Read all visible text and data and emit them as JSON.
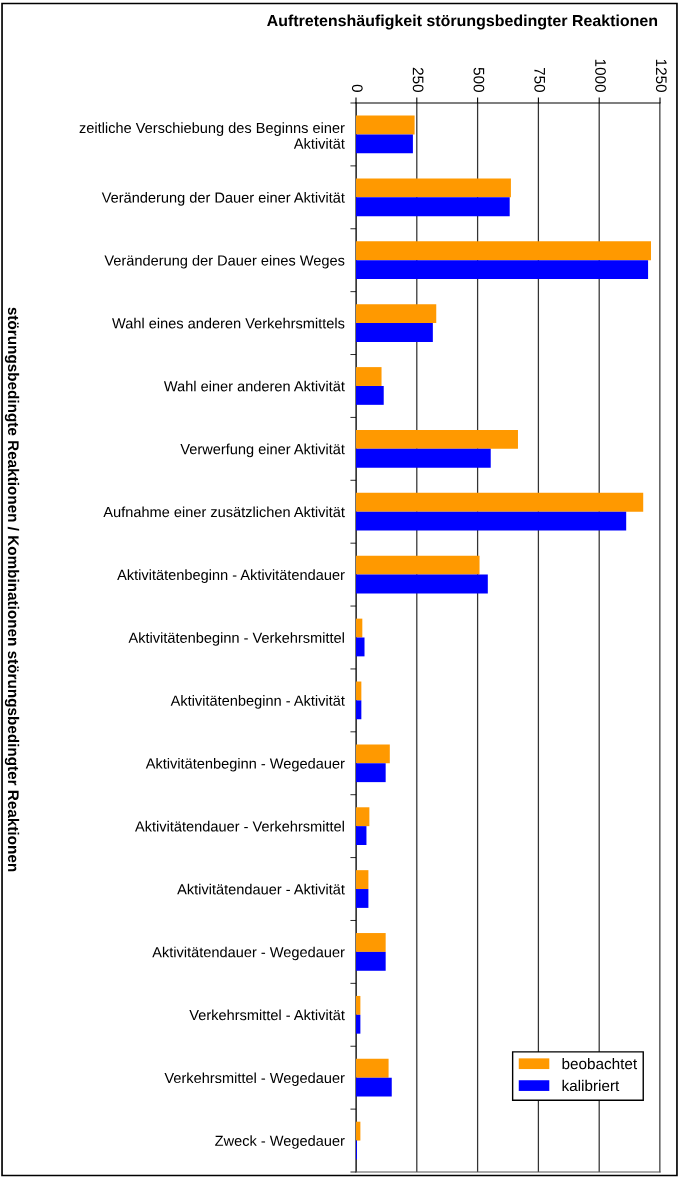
{
  "chart_data": {
    "type": "bar",
    "orientation": "horizontal",
    "title": "Auftretenshäufigkeit störungsbedingter Reaktionen",
    "ylabel": "störungsbedingte Reaktionen / Kombinationen störungsbedingter Reaktionen",
    "categories": [
      "zeitliche Verschiebung des Beginns einer\nAktivität",
      "Veränderung der Dauer einer Aktivität",
      "Veränderung der Dauer eines Weges",
      "Wahl eines anderen Verkehrsmittels",
      "Wahl einer anderen Aktivität",
      "Verwerfung einer Aktivität",
      "Aufnahme einer zusätzlichen Aktivität",
      "Aktivitätenbeginn - Aktivitätendauer",
      "Aktivitätenbeginn - Verkehrsmittel",
      "Aktivitätenbeginn - Aktivität",
      "Aktivitätenbeginn - Wegedauer",
      "Aktivitätendauer - Verkehrsmittel",
      "Aktivitätendauer - Aktivität",
      "Aktivitätendauer - Wegedauer",
      "Verkehrsmittel - Aktivität",
      "Verkehrsmittel - Wegedauer",
      "Zweck - Wegedauer"
    ],
    "series": [
      {
        "name": "beobachtet",
        "color": "#ff9900",
        "values": [
          241,
          637,
          1213,
          330,
          105,
          666,
          1181,
          508,
          26,
          22,
          139,
          55,
          51,
          122,
          18,
          134,
          18
        ]
      },
      {
        "name": "kalibriert",
        "color": "#0000ff",
        "values": [
          234,
          632,
          1201,
          316,
          114,
          554,
          1111,
          542,
          35,
          22,
          122,
          43,
          51,
          122,
          18,
          147,
          4
        ]
      }
    ],
    "xlim": [
      0,
      1250
    ],
    "xticks": [
      0,
      250,
      500,
      750,
      1000,
      1250
    ],
    "grid": "x",
    "legend": "bottom right"
  }
}
